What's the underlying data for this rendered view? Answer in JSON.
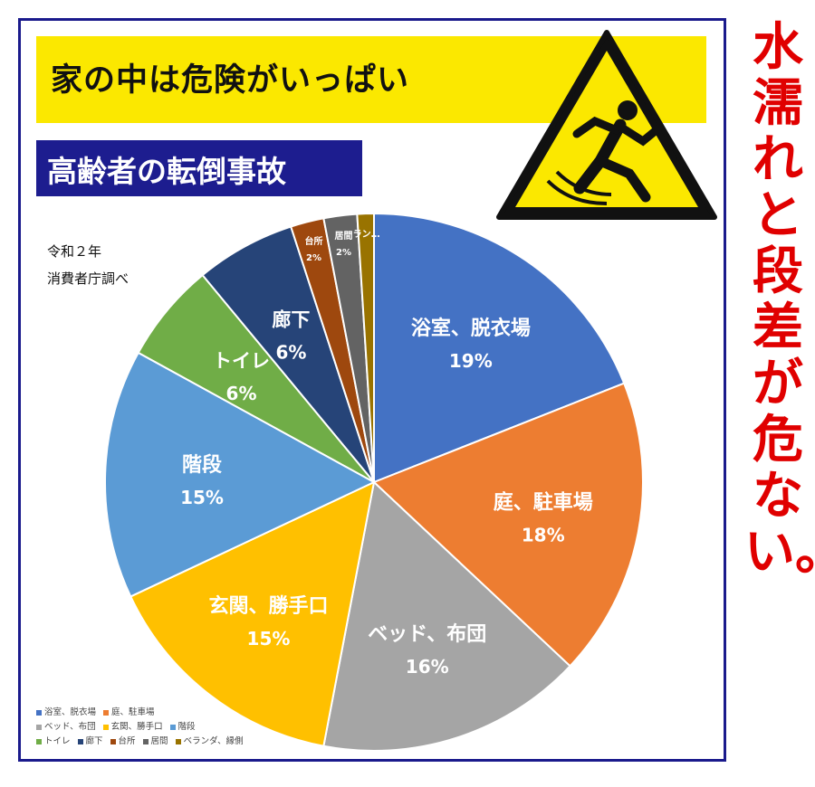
{
  "title": "家の中は危険がいっぱい",
  "subtitle": "高齢者の転倒事故",
  "source_line1": "令和２年",
  "source_line2": "消費者庁調べ",
  "side_caption": "水濡れと段差が危ない。",
  "warning_icon": "slip-hazard-icon",
  "colors": {
    "banner": "#fbe800",
    "subtitle_bg": "#1d1d8f",
    "side_text": "#e00000",
    "frame": "#1a1a8c"
  },
  "chart_data": {
    "type": "pie",
    "title": "",
    "slices": [
      {
        "label": "浴室、脱衣場",
        "value": 19,
        "display": "19%",
        "color": "#4472c4"
      },
      {
        "label": "庭、駐車場",
        "value": 18,
        "display": "18%",
        "color": "#ed7d31"
      },
      {
        "label": "ベッド、布団",
        "value": 16,
        "display": "16%",
        "color": "#a5a5a5"
      },
      {
        "label": "玄関、勝手口",
        "value": 15,
        "display": "15%",
        "color": "#ffc000"
      },
      {
        "label": "階段",
        "value": 15,
        "display": "15%",
        "color": "#5b9bd5"
      },
      {
        "label": "トイレ",
        "value": 6,
        "display": "6%",
        "color": "#70ad47"
      },
      {
        "label": "廊下",
        "value": 6,
        "display": "6%",
        "color": "#264478"
      },
      {
        "label": "台所",
        "value": 2,
        "display": "2%",
        "color": "#9e480e"
      },
      {
        "label": "居間",
        "value": 2,
        "display": "2%",
        "color": "#636363"
      },
      {
        "label": "ベランダ、縁側",
        "value": 1,
        "display": "",
        "color": "#997300"
      }
    ],
    "truncated_label": "ラン…",
    "legend_position": "bottom-left",
    "legend": [
      "浴室、脱衣場",
      "庭、駐車場",
      "ベッド、布団",
      "玄関、勝手口",
      "階段",
      "トイレ",
      "廊下",
      "台所",
      "居間",
      "ベランダ、縁側"
    ]
  }
}
